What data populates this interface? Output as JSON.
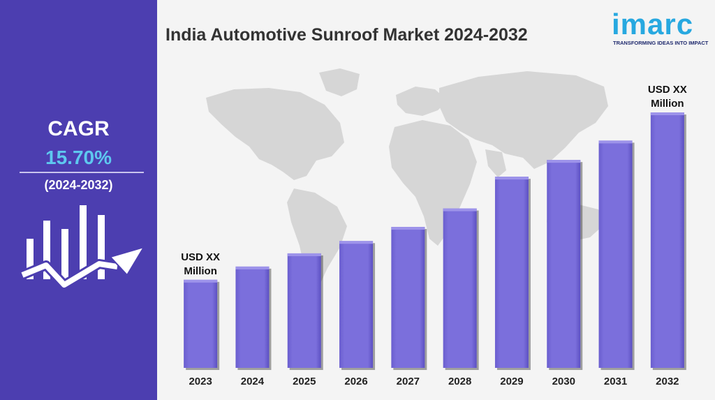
{
  "header": {
    "title": "India Automotive Sunroof Market 2024-2032"
  },
  "brand": {
    "name": "imarc",
    "tagline": "TRANSFORMING IDEAS INTO IMPACT",
    "color": "#27a8e0"
  },
  "sidebar": {
    "cagr_label": "CAGR",
    "cagr_value": "15.70%",
    "period": "(2024-2032)",
    "background": "#4c3eb0",
    "icon": "growth-chart-arrow-icon"
  },
  "chart_data": {
    "type": "bar",
    "categories": [
      "2023",
      "2024",
      "2025",
      "2026",
      "2027",
      "2028",
      "2029",
      "2030",
      "2031",
      "2032"
    ],
    "values": [
      100,
      115,
      130,
      144,
      160,
      181,
      217,
      236,
      258,
      290
    ],
    "value_note": "relative bar heights (actual values not disclosed)",
    "annotations": [
      {
        "category": "2023",
        "text": [
          "USD XX",
          "Million"
        ]
      },
      {
        "category": "2032",
        "text": [
          "USD XX",
          "Million"
        ]
      }
    ],
    "bar_color": "#7b6fdc",
    "background_image": "world-map"
  }
}
